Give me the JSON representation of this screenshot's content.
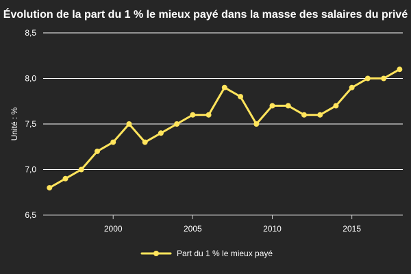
{
  "chart_data": {
    "type": "line",
    "title": "Évolution de la part du 1 % le mieux payé dans la masse des salaires du privé",
    "ylabel": "Unité : %",
    "xlabel": "",
    "ylim": [
      6.5,
      8.5
    ],
    "xlim": [
      1995.6,
      2018.2
    ],
    "y_ticks": [
      6.5,
      7.0,
      7.5,
      8.0,
      8.5
    ],
    "y_tick_labels": [
      "6,5",
      "7,0",
      "7,5",
      "8,0",
      "8,5"
    ],
    "x_ticks": [
      2000,
      2005,
      2010,
      2015
    ],
    "x_tick_labels": [
      "2000",
      "2005",
      "2010",
      "2015"
    ],
    "grid": "horizontal",
    "legend_position": "bottom",
    "series": [
      {
        "name": "Part du 1 % le mieux payé",
        "color": "#ffe45c",
        "x": [
          1996,
          1997,
          1998,
          1999,
          2000,
          2001,
          2002,
          2003,
          2004,
          2005,
          2006,
          2007,
          2008,
          2009,
          2010,
          2011,
          2012,
          2013,
          2014,
          2015,
          2016,
          2017,
          2018
        ],
        "values": [
          6.8,
          6.9,
          7.0,
          7.2,
          7.3,
          7.5,
          7.3,
          7.4,
          7.5,
          7.6,
          7.6,
          7.9,
          7.8,
          7.5,
          7.7,
          7.7,
          7.6,
          7.6,
          7.7,
          7.9,
          8.0,
          8.0,
          8.1
        ]
      }
    ]
  },
  "colors": {
    "background": "#262626",
    "text": "#ffffff",
    "grid": "#ffffff",
    "series": "#ffe45c"
  }
}
